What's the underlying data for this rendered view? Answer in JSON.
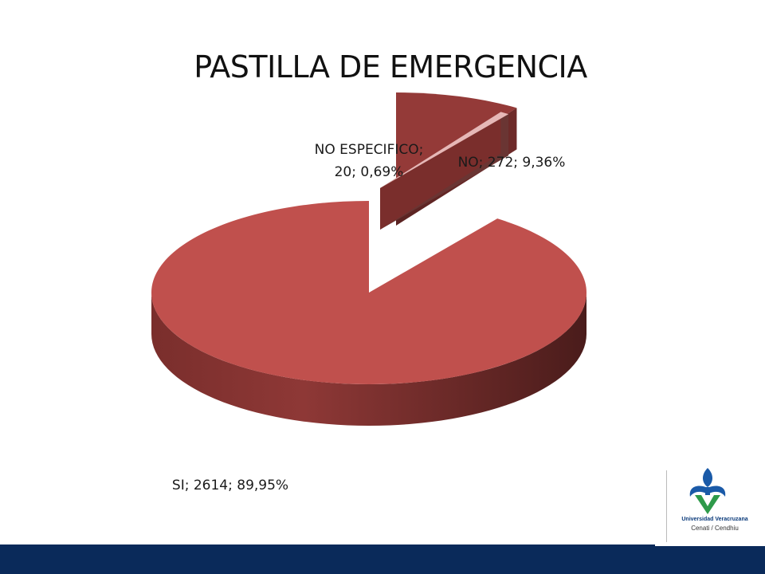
{
  "slide": {
    "title": "PASTILLA DE EMERGENCIA"
  },
  "logo": {
    "university": "Universidad Veracruzana",
    "unit": "Cenati / Cendhiu",
    "colors": {
      "blue": "#1a5aa8",
      "green": "#2e9a4a"
    }
  },
  "footer": {
    "color": "#0a2a5a"
  },
  "chart_data": {
    "type": "pie",
    "style": "3d-exploded",
    "title": "PASTILLA DE EMERGENCIA",
    "slices": [
      {
        "category": "NO",
        "value": 272,
        "percent": "9,36%",
        "label": "NO; 272; 9,36%",
        "color": "#943a38"
      },
      {
        "category": "NO ESPECIFICO",
        "value": 20,
        "percent": "0,69%",
        "label_line1": "NO ESPECIFICO;",
        "label_line2": "20; 0,69%",
        "color": "#e6b8b7"
      },
      {
        "category": "SI",
        "value": 2614,
        "percent": "89,95%",
        "label": "SI; 2614; 89,95%",
        "color": "#c0504d"
      }
    ],
    "legend": "none"
  }
}
